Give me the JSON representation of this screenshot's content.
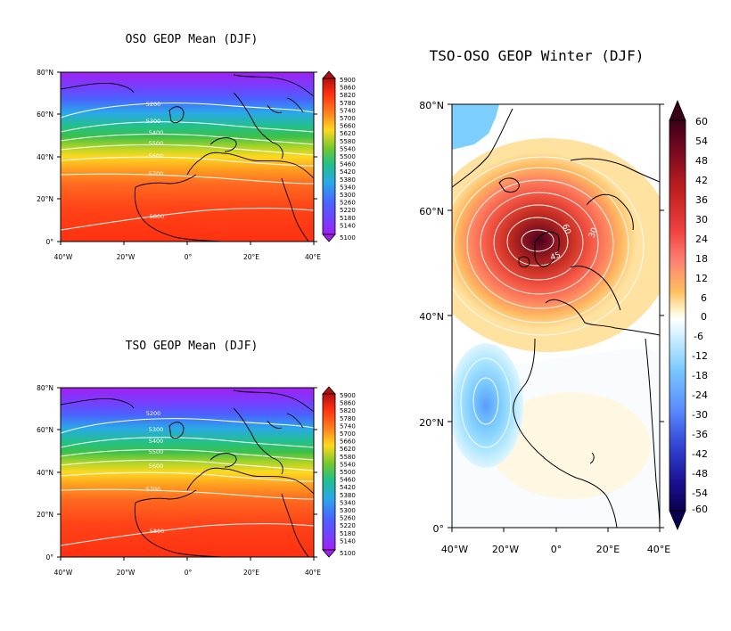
{
  "panels": [
    {
      "id": "oso-mean",
      "title": "OSO GEOP Mean (DJF)",
      "lat_labels": [
        "0°",
        "20°N",
        "40°N",
        "60°N",
        "80°N"
      ],
      "lon_labels": [
        "40°W",
        "20°W",
        "0°",
        "20°E",
        "40°E"
      ],
      "contour_labels": [
        "5200",
        "5300",
        "5400",
        "5500",
        "5600",
        "5700",
        "5800"
      ],
      "colorbar_labels": [
        "5900",
        "5860",
        "5820",
        "5780",
        "5740",
        "5700",
        "5660",
        "5620",
        "5580",
        "5540",
        "5500",
        "5460",
        "5420",
        "5380",
        "5340",
        "5300",
        "5260",
        "5220",
        "5180",
        "5140",
        "5100"
      ]
    },
    {
      "id": "tso-mean",
      "title": "TSO GEOP Mean (DJF)",
      "lat_labels": [
        "0°",
        "20°N",
        "40°N",
        "60°N",
        "80°N"
      ],
      "lon_labels": [
        "40°W",
        "20°W",
        "0°",
        "20°E",
        "40°E"
      ],
      "contour_labels": [
        "5200",
        "5300",
        "5400",
        "5500",
        "5600",
        "5700",
        "5800"
      ],
      "colorbar_labels": [
        "5900",
        "5860",
        "5820",
        "5780",
        "5740",
        "5700",
        "5660",
        "5620",
        "5580",
        "5540",
        "5500",
        "5460",
        "5420",
        "5380",
        "5340",
        "5300",
        "5260",
        "5220",
        "5180",
        "5140",
        "5100"
      ]
    },
    {
      "id": "difference",
      "title": "TSO-OSO GEOP Winter (DJF)",
      "lat_labels": [
        "0°",
        "20°N",
        "40°N",
        "60°N",
        "80°N"
      ],
      "lon_labels": [
        "40°W",
        "20°W",
        "0°",
        "20°E",
        "40°E"
      ],
      "contour_labels": [
        "60",
        "45",
        "30"
      ],
      "colorbar_labels": [
        "60",
        "54",
        "48",
        "42",
        "36",
        "30",
        "24",
        "18",
        "12",
        "6",
        "0",
        "-6",
        "-12",
        "-18",
        "-24",
        "-30",
        "-36",
        "-42",
        "-48",
        "-54",
        "-60"
      ]
    }
  ],
  "colors": {
    "mean_scale_low_to_high": [
      "#a020f0",
      "#7a3cff",
      "#5060ff",
      "#3a8cff",
      "#20b8e0",
      "#20c8a0",
      "#30c060",
      "#70c830",
      "#c8d820",
      "#ffd820",
      "#ffb020",
      "#ff8020",
      "#ff5020",
      "#ff2a10"
    ],
    "diff_positive": [
      "#fff4c8",
      "#ffd070",
      "#ffa050",
      "#ff7050",
      "#f04040",
      "#c02020",
      "#8a1010",
      "#4a0020"
    ],
    "diff_negative": [
      "#d8f4ff",
      "#a8e4ff",
      "#78c8ff",
      "#5aa0ff",
      "#4060e8",
      "#2020b0",
      "#100060"
    ]
  }
}
